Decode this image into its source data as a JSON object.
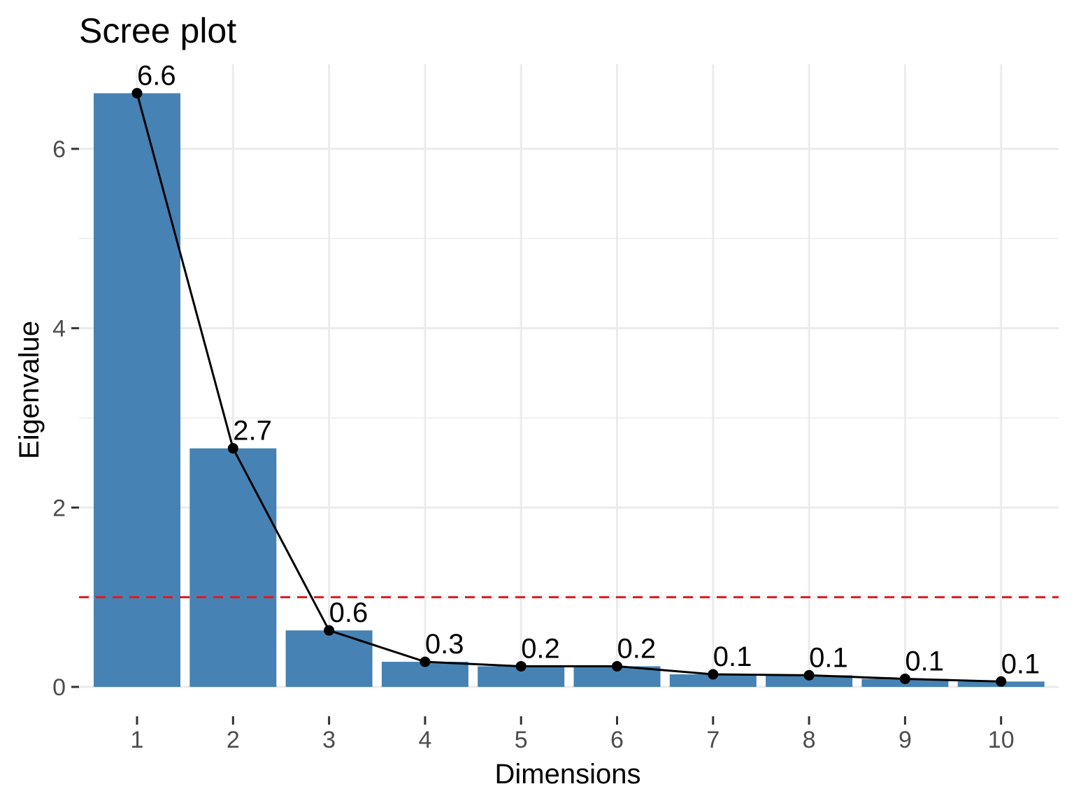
{
  "chart_data": {
    "type": "bar",
    "title": "Scree plot",
    "xlabel": "Dimensions",
    "ylabel": "Eigenvalue",
    "categories": [
      "1",
      "2",
      "3",
      "4",
      "5",
      "6",
      "7",
      "8",
      "9",
      "10"
    ],
    "values": [
      6.62,
      2.66,
      0.63,
      0.28,
      0.23,
      0.23,
      0.14,
      0.13,
      0.09,
      0.06
    ],
    "data_labels": [
      "6.6",
      "2.7",
      "0.6",
      "0.3",
      "0.2",
      "0.2",
      "0.1",
      "0.1",
      "0.1",
      "0.1"
    ],
    "ylim": [
      0,
      6.6
    ],
    "yticks": [
      0,
      2,
      4,
      6
    ],
    "reference_line": {
      "value": 1,
      "color": "#e41a1c",
      "style": "dashed"
    },
    "line_overlay": true,
    "grid": true,
    "bar_color": "#4682b4",
    "line_color": "#000000",
    "grid_color": "#ebebeb"
  }
}
